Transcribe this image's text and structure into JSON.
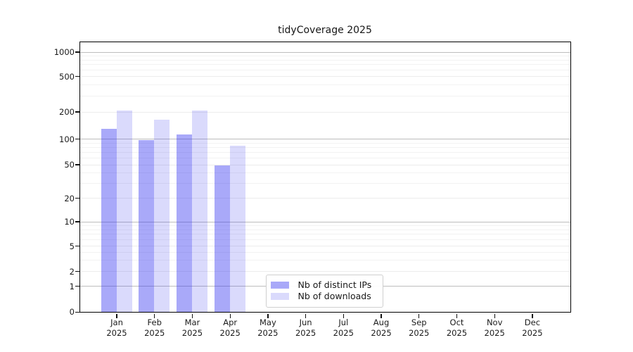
{
  "chart_data": {
    "type": "bar",
    "title": "tidyCoverage 2025",
    "scale": "log",
    "ylim": [
      0,
      1000
    ],
    "y_ticks": [
      0,
      1,
      2,
      5,
      10,
      20,
      50,
      100,
      200,
      500,
      1000
    ],
    "grid": true,
    "legend_position": "bottom-center",
    "categories": [
      {
        "month": "Jan",
        "year": "2025"
      },
      {
        "month": "Feb",
        "year": "2025"
      },
      {
        "month": "Mar",
        "year": "2025"
      },
      {
        "month": "Apr",
        "year": "2025"
      },
      {
        "month": "May",
        "year": "2025"
      },
      {
        "month": "Jun",
        "year": "2025"
      },
      {
        "month": "Jul",
        "year": "2025"
      },
      {
        "month": "Aug",
        "year": "2025"
      },
      {
        "month": "Sep",
        "year": "2025"
      },
      {
        "month": "Oct",
        "year": "2025"
      },
      {
        "month": "Nov",
        "year": "2025"
      },
      {
        "month": "Dec",
        "year": "2025"
      }
    ],
    "series": [
      {
        "id": "distinct-ips",
        "name": "Nb of distinct IPs",
        "fill": "rgba(50,50,240,0.42)",
        "values": [
          128,
          96,
          112,
          49,
          null,
          null,
          null,
          null,
          null,
          null,
          null,
          null
        ]
      },
      {
        "id": "downloads",
        "name": "Nb of downloads",
        "fill": "rgba(50,50,240,0.18)",
        "values": [
          205,
          164,
          205,
          83,
          null,
          null,
          null,
          null,
          null,
          null,
          null,
          null
        ]
      }
    ]
  }
}
